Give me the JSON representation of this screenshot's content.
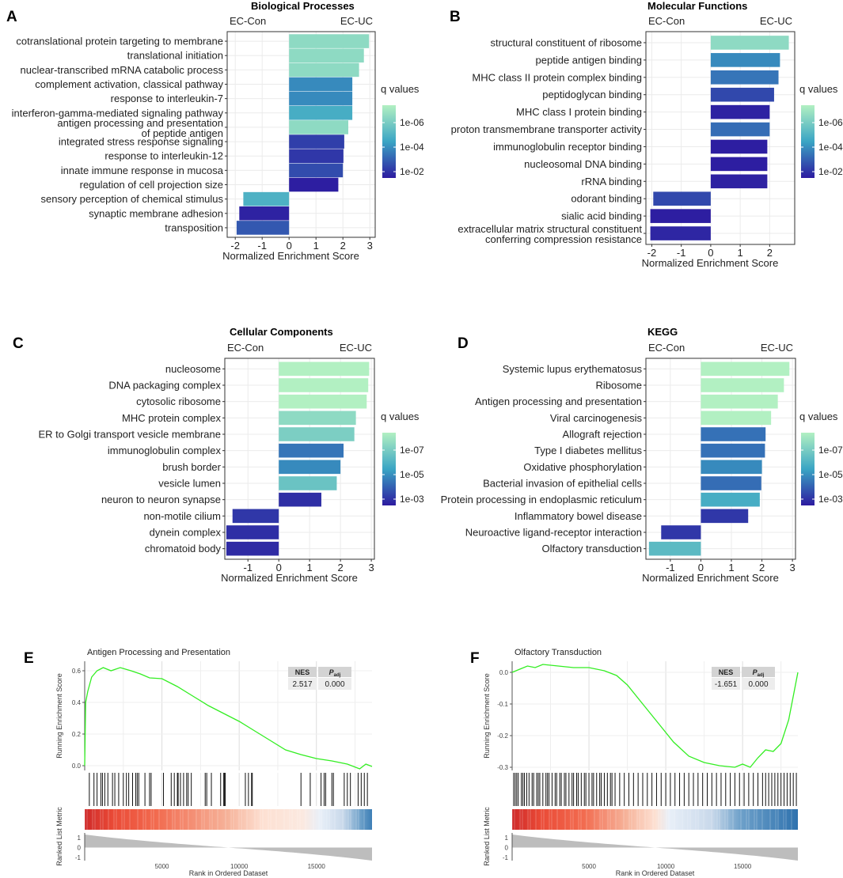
{
  "chart_data": [
    {
      "id": "A",
      "type": "bar",
      "orientation": "horizontal",
      "title": "Biological Processes",
      "left_label": "EC-Con",
      "right_label": "EC-UC",
      "xlabel": "Normalized Enrichment Score",
      "xlim": [
        -2.3,
        3.2
      ],
      "xticks": [
        -2,
        -1,
        0,
        1,
        2,
        3
      ],
      "legend": {
        "title": "q values",
        "ticks": [
          "1e-06",
          "1e-04",
          "1e-02"
        ]
      },
      "categories": [
        "cotranslational protein targeting to membrane",
        "translational initiation",
        "nuclear-transcribed mRNA catabolic process",
        "complement activation, classical pathway",
        "response to interleukin-7",
        "interferon-gamma-mediated signaling pathway",
        "antigen processing and presentation\nof peptide antigen",
        "integrated stress response signaling",
        "response to interleukin-12",
        "innate immune response in mucosa",
        "regulation of cell projection size",
        "sensory perception of chemical stimulus",
        "synaptic membrane adhesion",
        "transposition"
      ],
      "values": [
        2.97,
        2.78,
        2.6,
        2.35,
        2.35,
        2.35,
        2.2,
        2.05,
        2.02,
        2.0,
        1.83,
        -1.7,
        -1.85,
        -1.95
      ],
      "q_log10": [
        -7.0,
        -7.0,
        -7.0,
        -4.0,
        -4.0,
        -5.0,
        -7.0,
        -2.2,
        -2.0,
        -2.5,
        -1.4,
        -5.2,
        -1.5,
        -2.8
      ]
    },
    {
      "id": "B",
      "type": "bar",
      "orientation": "horizontal",
      "title": "Molecular Functions",
      "left_label": "EC-Con",
      "right_label": "EC-UC",
      "xlabel": "Normalized Enrichment Score",
      "xlim": [
        -2.2,
        2.85
      ],
      "xticks": [
        -2,
        -1,
        0,
        1,
        2
      ],
      "legend": {
        "title": "q values",
        "ticks": [
          "1e-06",
          "1e-04",
          "1e-02"
        ]
      },
      "categories": [
        "structural constituent of ribosome",
        "peptide antigen binding",
        "MHC class II protein complex binding",
        "peptidoglycan binding",
        "MHC class I protein binding",
        "proton transmembrane transporter activity",
        "immunoglobulin receptor binding",
        "nucleosomal DNA binding",
        "rRNA binding",
        "odorant binding",
        "sialic acid binding",
        "extracellular matrix structural constituent\nconferring compression resistance"
      ],
      "values": [
        2.65,
        2.35,
        2.3,
        2.15,
        2.0,
        2.0,
        1.92,
        1.92,
        1.92,
        -1.95,
        -2.05,
        -2.05
      ],
      "q_log10": [
        -7.0,
        -4.0,
        -3.5,
        -2.4,
        -1.5,
        -3.3,
        -1.4,
        -1.4,
        -1.5,
        -2.4,
        -1.4,
        -1.6
      ]
    },
    {
      "id": "C",
      "type": "bar",
      "orientation": "horizontal",
      "title": "Cellular Components",
      "left_label": "EC-Con",
      "right_label": "EC-UC",
      "xlabel": "Normalized Enrichment Score",
      "xlim": [
        -1.75,
        3.1
      ],
      "xticks": [
        -1,
        0,
        1,
        2,
        3
      ],
      "legend": {
        "title": "q values",
        "ticks": [
          "1e-07",
          "1e-05",
          "1e-03"
        ]
      },
      "categories": [
        "nucleosome",
        "DNA packaging complex",
        "cytosolic ribosome",
        "MHC protein complex",
        "ER to Golgi transport vesicle membrane",
        "immunoglobulin complex",
        "brush border",
        "vesicle lumen",
        "neuron to neuron synapse",
        "non-motile cilium",
        "dynein complex",
        "chromatoid body"
      ],
      "values": [
        2.93,
        2.9,
        2.85,
        2.5,
        2.45,
        2.1,
        2.0,
        1.88,
        1.38,
        -1.5,
        -1.7,
        -1.7
      ],
      "q_log10": [
        -8.0,
        -8.0,
        -8.0,
        -7.0,
        -6.5,
        -3.5,
        -4.0,
        -6.0,
        -1.8,
        -2.0,
        -1.8,
        -1.7
      ]
    },
    {
      "id": "D",
      "type": "bar",
      "orientation": "horizontal",
      "title": "KEGG",
      "left_label": "EC-Con",
      "right_label": "EC-UC",
      "xlabel": "Normalized Enrichment Score",
      "xlim": [
        -1.8,
        3.1
      ],
      "xticks": [
        -1,
        0,
        1,
        2,
        3
      ],
      "legend": {
        "title": "q values",
        "ticks": [
          "1e-07",
          "1e-05",
          "1e-03"
        ]
      },
      "categories": [
        "Systemic lupus erythematosus",
        "Ribosome",
        "Antigen processing and presentation",
        "Viral carcinogenesis",
        "Allograft rejection",
        "Type I diabetes mellitus",
        "Oxidative phosphorylation",
        "Bacterial invasion of epithelial cells",
        "Protein processing in endoplasmic reticulum",
        "Inflammatory bowel disease",
        "Neuroactive ligand-receptor interaction",
        "Olfactory transduction"
      ],
      "values": [
        2.9,
        2.72,
        2.52,
        2.3,
        2.12,
        2.1,
        2.0,
        1.98,
        1.93,
        1.55,
        -1.3,
        -1.7
      ],
      "q_log10": [
        -8.0,
        -8.0,
        -8.0,
        -8.0,
        -3.4,
        -3.4,
        -4.0,
        -3.3,
        -5.0,
        -2.0,
        -2.0,
        -5.6
      ]
    },
    {
      "id": "E",
      "type": "line",
      "title": "Antigen Processing and Presentation",
      "ylabel": "Running Enrichment Score",
      "lower_ylabel": "Ranked List Metric",
      "xlabel": "Rank in Ordered Dataset",
      "xlim": [
        0,
        18600
      ],
      "xticks": [
        5000,
        10000,
        15000
      ],
      "ylim": [
        -0.03,
        0.66
      ],
      "yticks": [
        {
          "v": 0.0,
          "t": "0.0"
        },
        {
          "v": 0.2,
          "t": "0.2"
        },
        {
          "v": 0.4,
          "t": "0.4"
        },
        {
          "v": 0.6,
          "t": "0.6"
        }
      ],
      "metric_ticks": [
        "1",
        "0",
        "-1"
      ],
      "stats": {
        "nes_header": "NES",
        "padj_header": "P",
        "padj_sub": "adj",
        "nes": "2.517",
        "padj": "0.000"
      },
      "curve": [
        [
          0,
          0.0
        ],
        [
          60,
          0.4
        ],
        [
          200,
          0.47
        ],
        [
          450,
          0.56
        ],
        [
          800,
          0.6
        ],
        [
          1200,
          0.62
        ],
        [
          1700,
          0.6
        ],
        [
          2300,
          0.62
        ],
        [
          3000,
          0.6
        ],
        [
          3600,
          0.58
        ],
        [
          4200,
          0.555
        ],
        [
          5000,
          0.55
        ],
        [
          6000,
          0.5
        ],
        [
          7000,
          0.44
        ],
        [
          8000,
          0.38
        ],
        [
          9000,
          0.33
        ],
        [
          10000,
          0.28
        ],
        [
          11000,
          0.22
        ],
        [
          12000,
          0.16
        ],
        [
          13000,
          0.1
        ],
        [
          14000,
          0.07
        ],
        [
          15000,
          0.045
        ],
        [
          16000,
          0.03
        ],
        [
          17000,
          0.01
        ],
        [
          17800,
          -0.02
        ],
        [
          18200,
          0.01
        ],
        [
          18600,
          -0.005
        ]
      ],
      "hits": [
        300,
        600,
        800,
        1050,
        1150,
        1300,
        1500,
        1800,
        1950,
        2200,
        2500,
        2700,
        2850,
        3100,
        3300,
        3400,
        3500,
        3900,
        4200,
        4300,
        5100,
        5600,
        5800,
        6000,
        6050,
        6200,
        6400,
        6600,
        6700,
        6900,
        7800,
        7900,
        8200,
        8800,
        9000,
        9050,
        9100,
        10400,
        10600,
        10800,
        10850,
        14000,
        14600,
        15300,
        15500,
        15600,
        16000,
        16100,
        16800,
        17000,
        17200,
        17700,
        17900,
        18100,
        18300
      ],
      "heat_stops": [
        [
          0,
          "#cf2a2a"
        ],
        [
          0.1,
          "#ea4a36"
        ],
        [
          0.25,
          "#f26b4f"
        ],
        [
          0.5,
          "#f6b39a"
        ],
        [
          0.62,
          "#fde0d2"
        ],
        [
          0.76,
          "#fbe9e0"
        ],
        [
          0.82,
          "#e8eff8"
        ],
        [
          0.9,
          "#c8d8ea"
        ],
        [
          0.96,
          "#6da0c9"
        ],
        [
          1,
          "#3d7fb6"
        ]
      ]
    },
    {
      "id": "F",
      "type": "line",
      "title": "Olfactory Transduction",
      "ylabel": "Running Enrichment Score",
      "lower_ylabel": "Ranked List Metric",
      "xlabel": "Rank in Ordered Dataset",
      "xlim": [
        0,
        18600
      ],
      "xticks": [
        5000,
        10000,
        15000
      ],
      "ylim": [
        -0.31,
        0.035
      ],
      "yticks": [
        {
          "v": 0.0,
          "t": "0.0"
        },
        {
          "v": -0.1,
          "t": "-0.1"
        },
        {
          "v": -0.2,
          "t": "-0.2"
        },
        {
          "v": -0.3,
          "t": "-0.3"
        }
      ],
      "metric_ticks": [
        "1",
        "0",
        "-1"
      ],
      "stats": {
        "nes_header": "NES",
        "padj_header": "P",
        "padj_sub": "adj",
        "nes": "-1.651",
        "padj": "0.000"
      },
      "curve": [
        [
          0,
          0.0
        ],
        [
          500,
          0.01
        ],
        [
          1000,
          0.02
        ],
        [
          1500,
          0.015
        ],
        [
          2000,
          0.025
        ],
        [
          3000,
          0.02
        ],
        [
          4000,
          0.015
        ],
        [
          5000,
          0.015
        ],
        [
          6000,
          0.005
        ],
        [
          6800,
          -0.01
        ],
        [
          7500,
          -0.04
        ],
        [
          8500,
          -0.1
        ],
        [
          9500,
          -0.16
        ],
        [
          10500,
          -0.22
        ],
        [
          11500,
          -0.265
        ],
        [
          12500,
          -0.285
        ],
        [
          13500,
          -0.295
        ],
        [
          14500,
          -0.3
        ],
        [
          15000,
          -0.29
        ],
        [
          15500,
          -0.3
        ],
        [
          16000,
          -0.27
        ],
        [
          16500,
          -0.245
        ],
        [
          17000,
          -0.25
        ],
        [
          17500,
          -0.225
        ],
        [
          18000,
          -0.15
        ],
        [
          18600,
          0.0
        ]
      ],
      "hits": [
        100,
        200,
        300,
        400,
        600,
        700,
        800,
        950,
        1100,
        1300,
        1400,
        1600,
        1700,
        1800,
        2000,
        2200,
        2300,
        2400,
        2600,
        2800,
        2900,
        3100,
        3200,
        3400,
        3500,
        3700,
        3900,
        4000,
        4200,
        4300,
        4500,
        4700,
        4800,
        5000,
        5200,
        5300,
        5500,
        5700,
        5800,
        6000,
        6200,
        6400,
        6500,
        6700,
        7000,
        7300,
        7600,
        7900,
        8200,
        8500,
        8800,
        9100,
        9400,
        9700,
        10000,
        10300,
        10600,
        10900,
        11200,
        11500,
        11800,
        12100,
        12400,
        12700,
        13000,
        13300,
        13600,
        13900,
        14200,
        14500,
        14800,
        15100,
        15400,
        15700,
        16000,
        16300,
        16500,
        16700,
        16900,
        17100,
        17300,
        17500,
        17700,
        17900,
        18100,
        18300,
        18500
      ],
      "heat_stops": [
        [
          0,
          "#cf2a2a"
        ],
        [
          0.1,
          "#ea4a36"
        ],
        [
          0.25,
          "#f26b4f"
        ],
        [
          0.4,
          "#f6b39a"
        ],
        [
          0.5,
          "#fde0d2"
        ],
        [
          0.55,
          "#e8eff8"
        ],
        [
          0.7,
          "#c8d8ea"
        ],
        [
          0.8,
          "#6da0c9"
        ],
        [
          1,
          "#2f72ae"
        ]
      ]
    }
  ],
  "panel_letters": [
    "A",
    "B",
    "C",
    "D",
    "E",
    "F"
  ],
  "colors": {
    "q_low": "#2d1aa0",
    "q_mid": "#3aa5c4",
    "q_high": "#b2f0c2",
    "grid": "#ebebeb",
    "curve": "#33ee22",
    "metric_fill": "#bdbdbd"
  }
}
